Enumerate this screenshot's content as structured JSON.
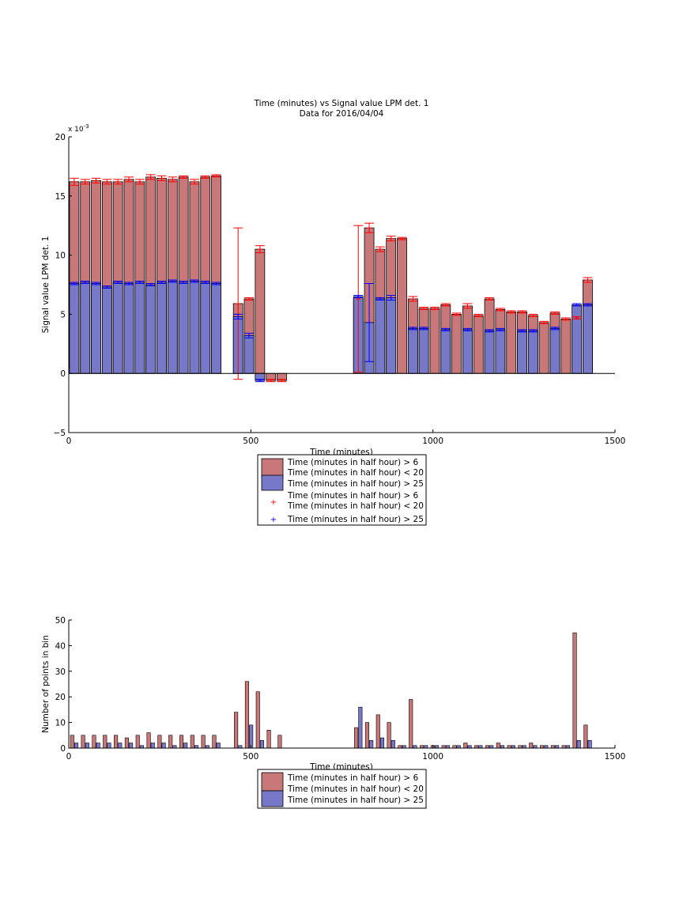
{
  "chart_data": [
    {
      "type": "bar",
      "title": "Time (minutes) vs Signal value LPM det. 1",
      "subtitle": "Data for 2016/04/04",
      "xlabel": "Time (minutes)",
      "ylabel": "Signal value LPM det. 1",
      "y_exponent_label": "x 10",
      "y_exponent_power": "-3",
      "xlim": [
        0,
        1500
      ],
      "ylim": [
        -5,
        20
      ],
      "x_ticks": [
        "0",
        "500",
        "1000",
        "1500"
      ],
      "y_ticks": [
        "−5",
        "0",
        "5",
        "10",
        "15",
        "20"
      ],
      "y_tick_values": [
        -5,
        0,
        5,
        10,
        15,
        20
      ],
      "x_tick_values": [
        0,
        500,
        1000,
        1500
      ],
      "legend_position": "below",
      "legend": [
        "Time (minutes in half hour) > 6",
        "Time (minutes in half hour) < 20",
        "Time (minutes in half hour) > 25",
        "Time (minutes in half hour) > 6",
        "Time (minutes in half hour) < 20",
        "Time (minutes in half hour) > 25"
      ],
      "series": [
        {
          "color": "#c87878",
          "errorbar_color": "#ff0000",
          "x": [
            15,
            45,
            75,
            105,
            135,
            165,
            195,
            225,
            255,
            285,
            315,
            345,
            375,
            405,
            465,
            495,
            525,
            555,
            585,
            795,
            825,
            855,
            885,
            915,
            945,
            975,
            1005,
            1035,
            1065,
            1095,
            1125,
            1155,
            1185,
            1215,
            1245,
            1275,
            1305,
            1335,
            1365,
            1395,
            1425
          ],
          "values": [
            16.2,
            16.2,
            16.3,
            16.2,
            16.2,
            16.4,
            16.2,
            16.6,
            16.5,
            16.4,
            16.6,
            16.2,
            16.6,
            16.7,
            5.9,
            6.3,
            10.5,
            -0.6,
            -0.6,
            6.3,
            12.3,
            10.5,
            11.4,
            11.4,
            6.3,
            5.5,
            5.5,
            5.8,
            5.0,
            5.7,
            4.9,
            6.3,
            5.4,
            5.2,
            5.2,
            4.9,
            4.3,
            5.1,
            4.6,
            4.7,
            7.9
          ],
          "errors": [
            0.3,
            0.2,
            0.2,
            0.2,
            0.2,
            0.2,
            0.2,
            0.2,
            0.2,
            0.2,
            0.1,
            0.2,
            0.1,
            0.1,
            6.4,
            0.1,
            0.3,
            0.1,
            0.1,
            6.2,
            0.4,
            0.2,
            0.2,
            0.1,
            0.2,
            0.1,
            0.1,
            0.1,
            0.1,
            0.2,
            0.1,
            0.1,
            0.1,
            0.1,
            0.1,
            0.1,
            0.1,
            0.1,
            0.1,
            0.1,
            0.2
          ]
        },
        {
          "color": "#7878c8",
          "errorbar_color": "#0000ff",
          "x": [
            15,
            45,
            75,
            105,
            135,
            165,
            195,
            225,
            255,
            285,
            315,
            345,
            375,
            405,
            465,
            495,
            525,
            795,
            825,
            855,
            885,
            945,
            975,
            1035,
            1095,
            1155,
            1185,
            1245,
            1275,
            1335,
            1395,
            1425
          ],
          "values": [
            7.6,
            7.7,
            7.6,
            7.3,
            7.7,
            7.6,
            7.7,
            7.5,
            7.7,
            7.8,
            7.7,
            7.8,
            7.7,
            7.6,
            4.8,
            3.2,
            -0.6,
            6.5,
            4.3,
            6.3,
            6.4,
            3.8,
            3.8,
            3.7,
            3.7,
            3.6,
            3.7,
            3.6,
            3.6,
            3.8,
            5.8,
            5.8
          ],
          "errors": [
            0.1,
            0.1,
            0.1,
            0.1,
            0.1,
            0.1,
            0.1,
            0.1,
            0.1,
            0.1,
            0.1,
            0.1,
            0.1,
            0.1,
            0.2,
            0.2,
            0.1,
            0.1,
            3.3,
            0.1,
            0.2,
            0.1,
            0.1,
            0.1,
            0.1,
            0.1,
            0.1,
            0.1,
            0.1,
            0.1,
            0.1,
            0.1
          ]
        }
      ]
    },
    {
      "type": "bar",
      "xlabel": "Time (minutes)",
      "ylabel": "Number of points in bin",
      "xlim": [
        0,
        1500
      ],
      "ylim": [
        0,
        50
      ],
      "x_ticks": [
        "0",
        "500",
        "1000",
        "1500"
      ],
      "x_tick_values": [
        0,
        500,
        1000,
        1500
      ],
      "y_ticks": [
        "0",
        "10",
        "20",
        "30",
        "40",
        "50"
      ],
      "y_tick_values": [
        0,
        10,
        20,
        30,
        40,
        50
      ],
      "legend_position": "below",
      "legend": [
        "Time (minutes in half hour) > 6",
        "Time (minutes in half hour) < 20",
        "Time (minutes in half hour) > 25"
      ],
      "series": [
        {
          "color": "#c87878",
          "x": [
            15,
            45,
            75,
            105,
            135,
            165,
            195,
            225,
            255,
            285,
            315,
            345,
            375,
            405,
            465,
            495,
            525,
            555,
            585,
            795,
            825,
            855,
            885,
            915,
            945,
            975,
            1005,
            1035,
            1065,
            1095,
            1125,
            1155,
            1185,
            1215,
            1245,
            1275,
            1305,
            1335,
            1365,
            1395,
            1425
          ],
          "values": [
            5,
            5,
            5,
            5,
            5,
            4,
            5,
            6,
            5,
            5,
            5,
            5,
            5,
            5,
            14,
            26,
            22,
            7,
            5,
            8,
            10,
            13,
            10,
            1,
            19,
            1,
            1,
            1,
            1,
            2,
            1,
            1,
            2,
            1,
            1,
            2,
            1,
            1,
            1,
            45,
            9
          ]
        },
        {
          "color": "#7878c8",
          "x": [
            15,
            45,
            75,
            105,
            135,
            165,
            195,
            225,
            255,
            285,
            315,
            345,
            375,
            405,
            465,
            495,
            525,
            795,
            825,
            855,
            885,
            915,
            945,
            975,
            1005,
            1035,
            1065,
            1095,
            1125,
            1155,
            1185,
            1215,
            1245,
            1275,
            1305,
            1335,
            1365,
            1395,
            1425
          ],
          "values": [
            2,
            2,
            2,
            2,
            2,
            2,
            1,
            2,
            2,
            1,
            2,
            1,
            1,
            2,
            1,
            9,
            3,
            16,
            3,
            4,
            3,
            1,
            1,
            1,
            1,
            1,
            1,
            1,
            1,
            1,
            1,
            1,
            1,
            1,
            1,
            1,
            1,
            3,
            3
          ]
        }
      ]
    }
  ]
}
